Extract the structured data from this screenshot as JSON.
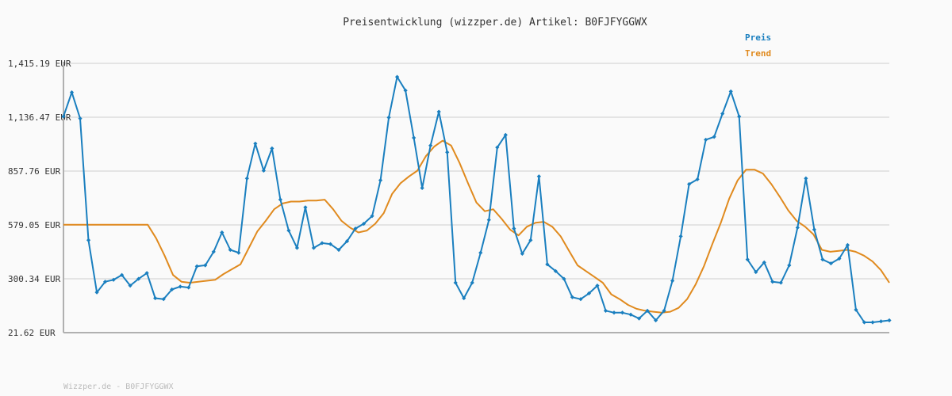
{
  "chart_data": {
    "type": "line",
    "title": "Preisentwicklung (wizzper.de) Artikel: B0FJFYGGWX",
    "footer": "Wizzper.de - B0FJFYGGWX",
    "ylim": [
      21.62,
      1415.19
    ],
    "yticks": [
      {
        "value": 1415.19,
        "label": "1,415.19 EUR"
      },
      {
        "value": 1136.47,
        "label": "1,136.47 EUR"
      },
      {
        "value": 857.76,
        "label": "857.76 EUR"
      },
      {
        "value": 579.05,
        "label": "579.05 EUR"
      },
      {
        "value": 300.34,
        "label": "300.34 EUR"
      },
      {
        "value": 21.62,
        "label": "21.62 EUR"
      }
    ],
    "grid": true,
    "legend_position": "top-right",
    "series": [
      {
        "name": "Preis",
        "color": "#1a7fbf",
        "marker": "diamond",
        "values": [
          1140,
          1265,
          1130,
          500,
          230,
          285,
          295,
          320,
          265,
          300,
          330,
          200,
          195,
          245,
          260,
          255,
          365,
          370,
          440,
          540,
          450,
          435,
          820,
          1000,
          860,
          975,
          710,
          550,
          460,
          670,
          460,
          485,
          480,
          450,
          495,
          560,
          585,
          625,
          810,
          1135,
          1345,
          1275,
          1030,
          770,
          990,
          1165,
          955,
          280,
          200,
          280,
          435,
          605,
          980,
          1045,
          560,
          430,
          500,
          830,
          375,
          340,
          300,
          205,
          195,
          225,
          265,
          135,
          125,
          125,
          115,
          95,
          135,
          85,
          135,
          290,
          520,
          790,
          815,
          1020,
          1035,
          1155,
          1270,
          1140,
          400,
          335,
          385,
          285,
          280,
          370,
          565,
          820,
          555,
          400,
          380,
          405,
          475,
          140,
          75,
          75,
          80,
          85
        ],
        "x_labels": []
      },
      {
        "name": "Trend",
        "color": "#e08a1e",
        "marker": "none",
        "values": [
          580,
          580,
          580,
          580,
          580,
          580,
          580,
          580,
          580,
          580,
          580,
          510,
          420,
          320,
          285,
          280,
          285,
          290,
          295,
          325,
          350,
          375,
          460,
          545,
          600,
          660,
          690,
          700,
          700,
          705,
          705,
          710,
          660,
          600,
          565,
          540,
          550,
          585,
          640,
          740,
          795,
          830,
          860,
          935,
          985,
          1015,
          990,
          900,
          795,
          695,
          650,
          660,
          610,
          555,
          525,
          570,
          590,
          595,
          570,
          520,
          445,
          370,
          340,
          310,
          280,
          220,
          195,
          165,
          145,
          135,
          130,
          125,
          130,
          150,
          195,
          270,
          365,
          480,
          590,
          715,
          810,
          865,
          865,
          845,
          790,
          725,
          655,
          600,
          570,
          530,
          450,
          440,
          445,
          450,
          440,
          420,
          390,
          345,
          280
        ]
      }
    ]
  }
}
